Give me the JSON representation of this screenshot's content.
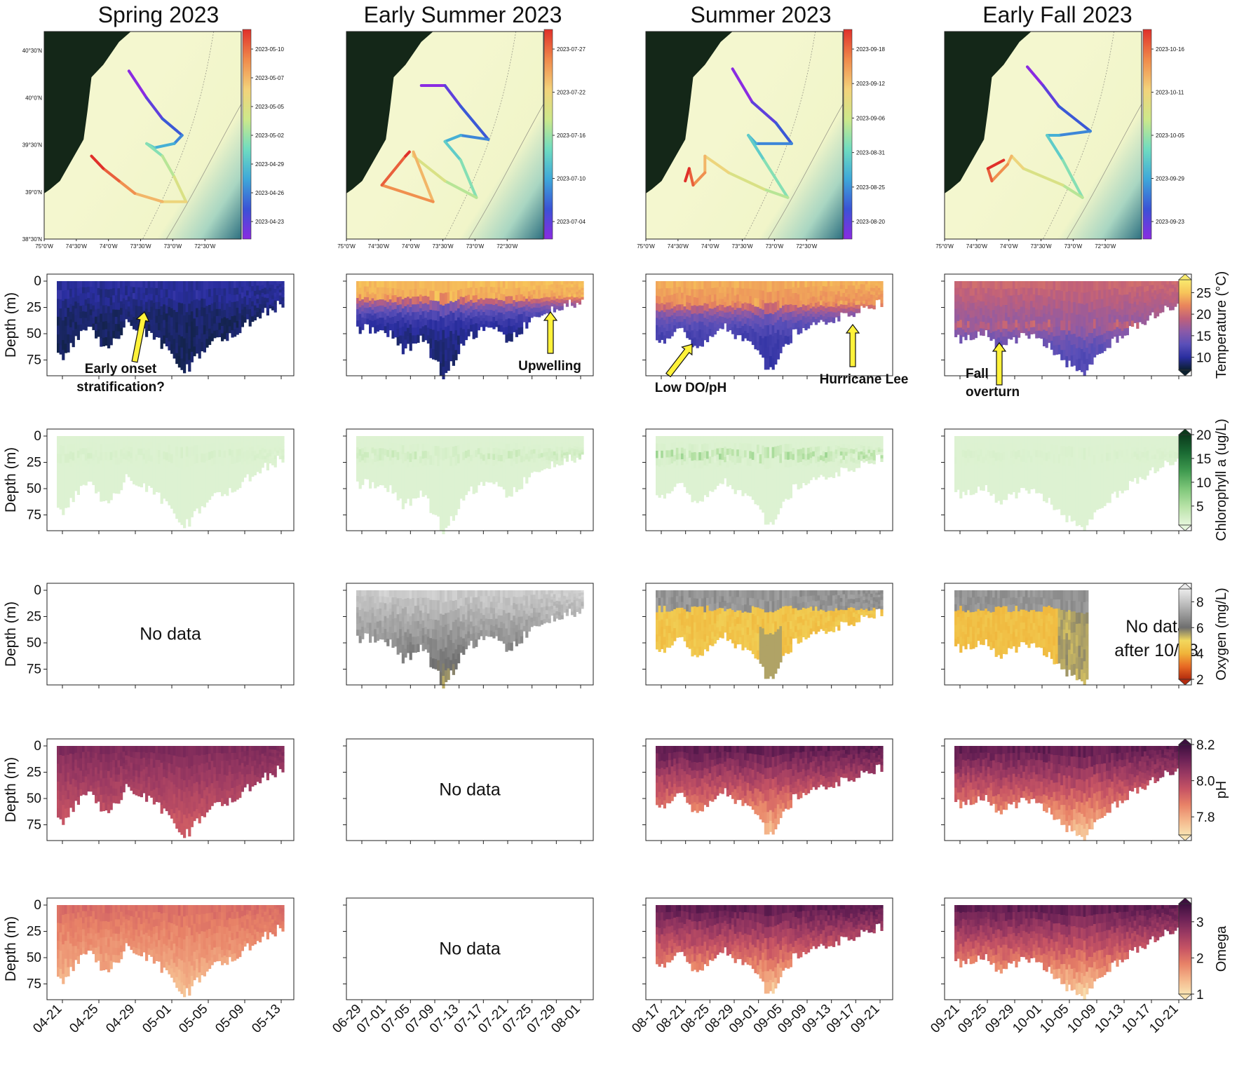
{
  "columns": [
    {
      "title": "Spring 2023",
      "map": {
        "lat_ticks": [
          "40°30'N",
          "40°0'N",
          "39°30'N",
          "39°0'N",
          "38°30'N"
        ],
        "lon_ticks": [
          "75°0'W",
          "74°30'W",
          "74°0'W",
          "73°30'W",
          "73°0'W",
          "72°30'W"
        ],
        "date_ticks": [
          "2023-05-10",
          "2023-05-07",
          "2023-05-05",
          "2023-05-02",
          "2023-04-29",
          "2023-04-26",
          "2023-04-23"
        ]
      },
      "time_ticks": [
        "04-21",
        "04-25",
        "04-29",
        "05-01",
        "05-05",
        "05-09",
        "05-13"
      ],
      "panels": {
        "temperature": {
          "has_data": true
        },
        "chlorophyll": {
          "has_data": true
        },
        "oxygen": {
          "has_data": false,
          "note": "No data"
        },
        "ph": {
          "has_data": true
        },
        "omega": {
          "has_data": true
        }
      },
      "annotations": [
        {
          "text_lines": [
            "Early onset",
            "stratification?"
          ],
          "panel": "temperature"
        }
      ]
    },
    {
      "title": "Early Summer 2023",
      "map": {
        "lat_ticks": [],
        "lon_ticks": [
          "75°0'W",
          "74°30'W",
          "74°0'W",
          "73°30'W",
          "73°0'W",
          "72°30'W"
        ],
        "date_ticks": [
          "2023-07-27",
          "2023-07-22",
          "2023-07-16",
          "2023-07-10",
          "2023-07-04"
        ]
      },
      "time_ticks": [
        "06-29",
        "07-01",
        "07-05",
        "07-09",
        "07-13",
        "07-17",
        "07-21",
        "07-25",
        "07-29",
        "08-01"
      ],
      "panels": {
        "temperature": {
          "has_data": true
        },
        "chlorophyll": {
          "has_data": true
        },
        "oxygen": {
          "has_data": true
        },
        "ph": {
          "has_data": false,
          "note": "No data"
        },
        "omega": {
          "has_data": false,
          "note": "No data"
        }
      },
      "annotations": [
        {
          "text_lines": [
            "Upwelling"
          ],
          "panel": "temperature"
        }
      ]
    },
    {
      "title": "Summer 2023",
      "map": {
        "lat_ticks": [],
        "lon_ticks": [
          "75°0'W",
          "74°30'W",
          "74°0'W",
          "73°30'W",
          "73°0'W",
          "72°30'W"
        ],
        "date_ticks": [
          "2023-09-18",
          "2023-09-12",
          "2023-09-06",
          "2023-08-31",
          "2023-08-25",
          "2023-08-20"
        ]
      },
      "time_ticks": [
        "08-17",
        "08-21",
        "08-25",
        "08-29",
        "09-01",
        "09-05",
        "09-09",
        "09-13",
        "09-17",
        "09-21"
      ],
      "panels": {
        "temperature": {
          "has_data": true
        },
        "chlorophyll": {
          "has_data": true
        },
        "oxygen": {
          "has_data": true
        },
        "ph": {
          "has_data": true
        },
        "omega": {
          "has_data": true
        }
      },
      "annotations": [
        {
          "text_lines": [
            "Low DO/pH"
          ],
          "panel": "temperature"
        },
        {
          "text_lines": [
            "Hurricane Lee"
          ],
          "panel": "temperature"
        }
      ]
    },
    {
      "title": "Early Fall 2023",
      "map": {
        "lat_ticks": [],
        "lon_ticks": [
          "75°0'W",
          "74°30'W",
          "74°0'W",
          "73°30'W",
          "73°0'W",
          "72°30'W"
        ],
        "date_ticks": [
          "2023-10-16",
          "2023-10-11",
          "2023-10-05",
          "2023-09-29",
          "2023-09-23"
        ]
      },
      "time_ticks": [
        "09-21",
        "09-25",
        "09-29",
        "10-01",
        "10-05",
        "10-09",
        "10-13",
        "10-17",
        "10-21"
      ],
      "panels": {
        "temperature": {
          "has_data": true
        },
        "chlorophyll": {
          "has_data": true
        },
        "oxygen": {
          "has_data": true,
          "note_lines": [
            "No data",
            "after 10/08"
          ]
        },
        "ph": {
          "has_data": true
        },
        "omega": {
          "has_data": true
        }
      },
      "annotations": [
        {
          "text_lines": [
            "Fall",
            "overturn"
          ],
          "panel": "temperature"
        }
      ]
    }
  ],
  "colorbars": {
    "temperature": {
      "label": "Temperature (°C)",
      "ticks": [
        "10",
        "15",
        "20",
        "25"
      ],
      "range": [
        7,
        28
      ],
      "colors": [
        "#0b1f2e",
        "#2a2ea0",
        "#5a4fb8",
        "#8a5aa8",
        "#c0607a",
        "#e9855c",
        "#f7c45a",
        "#f8ea6e"
      ]
    },
    "chlorophyll": {
      "label": "Chlorophyll a (ug/L)",
      "ticks": [
        "5",
        "10",
        "15",
        "20"
      ],
      "range": [
        1,
        20
      ],
      "colors": [
        "#e6f6dc",
        "#b9e3a8",
        "#7fc77a",
        "#3f9a4f",
        "#1a6a33",
        "#0b3a1c"
      ]
    },
    "oxygen": {
      "label": "Oxygen (mg/L)",
      "ticks": [
        "2",
        "4",
        "6",
        "8"
      ],
      "range": [
        2,
        9
      ],
      "colors": [
        "#b22a0e",
        "#e86a24",
        "#f0b43a",
        "#f2d85e",
        "#6e6e6e",
        "#999999",
        "#c4c4c4",
        "#ececec"
      ]
    },
    "ph": {
      "label": "pH",
      "ticks": [
        "7.8",
        "8.0",
        "8.2"
      ],
      "range": [
        7.7,
        8.2
      ],
      "colors": [
        "#f8e3b2",
        "#f4b58a",
        "#e88267",
        "#c85564",
        "#9c3a62",
        "#6c2256",
        "#3c0f3f"
      ]
    },
    "omega": {
      "label": "Omega",
      "ticks": [
        "1",
        "2",
        "3"
      ],
      "range": [
        1,
        3.5
      ],
      "colors": [
        "#f8e3b2",
        "#f4b58a",
        "#e88267",
        "#c85564",
        "#9c3a62",
        "#6c2256",
        "#3c0f3f"
      ]
    }
  },
  "depth_axis": {
    "label": "Depth (m)",
    "ticks": [
      "0",
      "25",
      "50",
      "75"
    ],
    "range": [
      0,
      90
    ]
  },
  "chart_data": {
    "type": "heatmap",
    "description_rows": [
      "map",
      "temperature",
      "chlorophyll",
      "oxygen",
      "ph",
      "omega"
    ],
    "seasons": [
      "Spring 2023",
      "Early Summer 2023",
      "Summer 2023",
      "Early Fall 2023"
    ],
    "ylabel": "Depth (m)",
    "ylim": [
      0,
      90
    ],
    "variables": [
      "Temperature (°C)",
      "Chlorophyll a (ug/L)",
      "Oxygen (mg/L)",
      "pH",
      "Omega"
    ]
  }
}
